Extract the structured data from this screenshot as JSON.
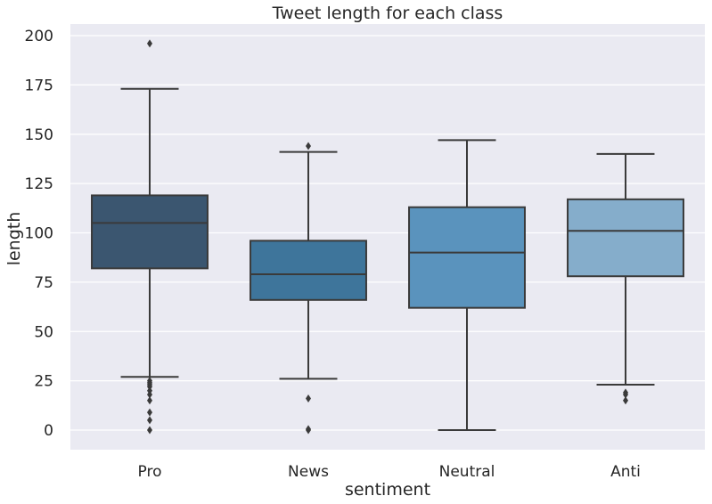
{
  "chart_data": {
    "type": "box",
    "title": "Tweet length for each class",
    "xlabel": "sentiment",
    "ylabel": "length",
    "ylim": [
      -10,
      208
    ],
    "yticks": [
      0,
      25,
      50,
      75,
      100,
      125,
      150,
      175,
      200
    ],
    "grid": true,
    "categories": [
      "Pro",
      "News",
      "Neutral",
      "Anti"
    ],
    "boxes": [
      {
        "category": "Pro",
        "whisker_low": 27,
        "q1": 82,
        "median": 105,
        "q3": 119,
        "whisker_high": 173,
        "outliers": [
          196,
          25,
          24,
          23,
          22,
          20,
          18,
          15,
          9,
          5,
          0
        ],
        "color": "#3b5670"
      },
      {
        "category": "News",
        "whisker_low": 26,
        "q1": 66,
        "median": 79,
        "q3": 96,
        "whisker_high": 141,
        "outliers": [
          144,
          16,
          0.5,
          0
        ],
        "color": "#3e759b"
      },
      {
        "category": "Neutral",
        "whisker_low": 0,
        "q1": 62,
        "median": 90,
        "q3": 113,
        "whisker_high": 147,
        "outliers": [],
        "color": "#5a93bd"
      },
      {
        "category": "Anti",
        "whisker_low": 23,
        "q1": 78,
        "median": 101,
        "q3": 117,
        "whisker_high": 140,
        "outliers": [
          19,
          18,
          15
        ],
        "color": "#85adcb"
      }
    ]
  }
}
